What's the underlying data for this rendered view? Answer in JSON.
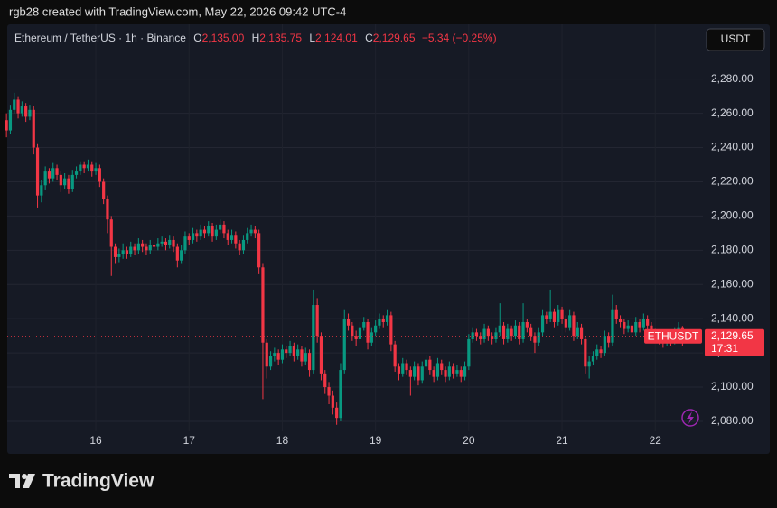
{
  "header": {
    "caption": "rgb28 created with TradingView.com, May 22, 2026 09:42 UTC-4",
    "currency_button": "USDT",
    "brand": "TradingView"
  },
  "chart_data": {
    "type": "candlestick",
    "legend": {
      "symbol": "Ethereum / TetherUS · 1h · Binance",
      "ohlc": [
        {
          "key": "O",
          "text": "2,135.00"
        },
        {
          "key": "H",
          "text": "2,135.75"
        },
        {
          "key": "L",
          "text": "2,124.01"
        },
        {
          "key": "C",
          "text": "2,129.65"
        }
      ],
      "change": "−5.34 (−0.25%)"
    },
    "up_color": "#089981",
    "down_color": "#f23645",
    "ylim": [
      2061,
      2312
    ],
    "yticks": [
      {
        "value": 2080,
        "label": "2,080.00"
      },
      {
        "value": 2100,
        "label": "2,100.00"
      },
      {
        "value": 2120,
        "label": "2,120.00"
      },
      {
        "value": 2140,
        "label": "2,140.00"
      },
      {
        "value": 2160,
        "label": "2,160.00"
      },
      {
        "value": 2180,
        "label": "2,180.00"
      },
      {
        "value": 2200,
        "label": "2,200.00"
      },
      {
        "value": 2220,
        "label": "2,220.00"
      },
      {
        "value": 2240,
        "label": "2,240.00"
      },
      {
        "value": 2260,
        "label": "2,260.00"
      },
      {
        "value": 2280,
        "label": "2,280.00"
      }
    ],
    "xticks": [
      {
        "value": 23,
        "label": "16"
      },
      {
        "value": 47,
        "label": "17"
      },
      {
        "value": 71,
        "label": "18"
      },
      {
        "value": 95,
        "label": "19"
      },
      {
        "value": 119,
        "label": "20"
      },
      {
        "value": 143,
        "label": "21"
      },
      {
        "value": 167,
        "label": "22"
      }
    ],
    "grid": true,
    "last_price": {
      "value": 2129.65,
      "label": "2,129.65",
      "countdown": "17:31",
      "symbol_label": "ETHUSDT"
    },
    "candles": [
      [
        2256,
        2260,
        2246,
        2250
      ],
      [
        2250,
        2265,
        2248,
        2262
      ],
      [
        2262,
        2272,
        2260,
        2268
      ],
      [
        2268,
        2270,
        2257,
        2260
      ],
      [
        2260,
        2267,
        2258,
        2264
      ],
      [
        2264,
        2266,
        2255,
        2258
      ],
      [
        2258,
        2265,
        2256,
        2262
      ],
      [
        2262,
        2264,
        2236,
        2240
      ],
      [
        2240,
        2242,
        2205,
        2212
      ],
      [
        2212,
        2221,
        2208,
        2218
      ],
      [
        2218,
        2229,
        2215,
        2226
      ],
      [
        2226,
        2228,
        2219,
        2222
      ],
      [
        2222,
        2231,
        2220,
        2228
      ],
      [
        2228,
        2230,
        2221,
        2224
      ],
      [
        2224,
        2226,
        2214,
        2218
      ],
      [
        2218,
        2225,
        2216,
        2222
      ],
      [
        2222,
        2224,
        2213,
        2216
      ],
      [
        2216,
        2227,
        2214,
        2224
      ],
      [
        2224,
        2229,
        2222,
        2226
      ],
      [
        2226,
        2232,
        2224,
        2230
      ],
      [
        2230,
        2232,
        2225,
        2228
      ],
      [
        2228,
        2233,
        2226,
        2230
      ],
      [
        2230,
        2232,
        2223,
        2226
      ],
      [
        2226,
        2231,
        2224,
        2228
      ],
      [
        2228,
        2230,
        2217,
        2220
      ],
      [
        2220,
        2222,
        2207,
        2210
      ],
      [
        2210,
        2212,
        2190,
        2198
      ],
      [
        2198,
        2200,
        2165,
        2182
      ],
      [
        2182,
        2184,
        2172,
        2176
      ],
      [
        2176,
        2181,
        2173,
        2178
      ],
      [
        2178,
        2184,
        2175,
        2180
      ],
      [
        2180,
        2182,
        2175,
        2178
      ],
      [
        2178,
        2185,
        2176,
        2182
      ],
      [
        2182,
        2184,
        2177,
        2180
      ],
      [
        2180,
        2187,
        2178,
        2184
      ],
      [
        2184,
        2186,
        2179,
        2182
      ],
      [
        2182,
        2184,
        2177,
        2180
      ],
      [
        2180,
        2186,
        2178,
        2183
      ],
      [
        2183,
        2185,
        2180,
        2182
      ],
      [
        2182,
        2187,
        2180,
        2184
      ],
      [
        2184,
        2188,
        2182,
        2185
      ],
      [
        2185,
        2187,
        2180,
        2183
      ],
      [
        2183,
        2189,
        2181,
        2186
      ],
      [
        2186,
        2188,
        2179,
        2182
      ],
      [
        2182,
        2184,
        2170,
        2174
      ],
      [
        2174,
        2183,
        2172,
        2180
      ],
      [
        2180,
        2191,
        2178,
        2188
      ],
      [
        2188,
        2190,
        2183,
        2186
      ],
      [
        2186,
        2193,
        2184,
        2190
      ],
      [
        2190,
        2192,
        2185,
        2188
      ],
      [
        2188,
        2195,
        2186,
        2192
      ],
      [
        2192,
        2194,
        2187,
        2190
      ],
      [
        2190,
        2197,
        2188,
        2194
      ],
      [
        2194,
        2196,
        2185,
        2188
      ],
      [
        2188,
        2195,
        2186,
        2192
      ],
      [
        2192,
        2198,
        2190,
        2195
      ],
      [
        2195,
        2197,
        2187,
        2190
      ],
      [
        2190,
        2192,
        2183,
        2186
      ],
      [
        2186,
        2192,
        2184,
        2189
      ],
      [
        2189,
        2191,
        2181,
        2184
      ],
      [
        2184,
        2186,
        2177,
        2180
      ],
      [
        2180,
        2189,
        2178,
        2186
      ],
      [
        2186,
        2193,
        2184,
        2190
      ],
      [
        2190,
        2195,
        2188,
        2192
      ],
      [
        2192,
        2194,
        2187,
        2190
      ],
      [
        2190,
        2192,
        2166,
        2170
      ],
      [
        2170,
        2172,
        2093,
        2126
      ],
      [
        2126,
        2128,
        2105,
        2112
      ],
      [
        2112,
        2121,
        2110,
        2118
      ],
      [
        2118,
        2123,
        2115,
        2120
      ],
      [
        2120,
        2122,
        2113,
        2116
      ],
      [
        2116,
        2125,
        2114,
        2122
      ],
      [
        2122,
        2124,
        2117,
        2120
      ],
      [
        2120,
        2127,
        2118,
        2124
      ],
      [
        2124,
        2126,
        2115,
        2118
      ],
      [
        2118,
        2125,
        2116,
        2122
      ],
      [
        2122,
        2124,
        2112,
        2115
      ],
      [
        2115,
        2123,
        2113,
        2120
      ],
      [
        2120,
        2122,
        2106,
        2110
      ],
      [
        2110,
        2157,
        2108,
        2148
      ],
      [
        2148,
        2152,
        2126,
        2130
      ],
      [
        2130,
        2132,
        2104,
        2108
      ],
      [
        2108,
        2110,
        2096,
        2100
      ],
      [
        2100,
        2103,
        2090,
        2095
      ],
      [
        2095,
        2098,
        2084,
        2088
      ],
      [
        2088,
        2091,
        2078,
        2082
      ],
      [
        2082,
        2114,
        2080,
        2110
      ],
      [
        2110,
        2145,
        2108,
        2140
      ],
      [
        2140,
        2143,
        2133,
        2136
      ],
      [
        2136,
        2138,
        2127,
        2130
      ],
      [
        2130,
        2133,
        2124,
        2128
      ],
      [
        2128,
        2138,
        2126,
        2135
      ],
      [
        2135,
        2141,
        2133,
        2138
      ],
      [
        2138,
        2140,
        2122,
        2126
      ],
      [
        2126,
        2135,
        2124,
        2132
      ],
      [
        2132,
        2139,
        2130,
        2136
      ],
      [
        2136,
        2143,
        2134,
        2140
      ],
      [
        2140,
        2142,
        2135,
        2138
      ],
      [
        2138,
        2145,
        2136,
        2142
      ],
      [
        2142,
        2144,
        2121,
        2125
      ],
      [
        2125,
        2127,
        2109,
        2112
      ],
      [
        2112,
        2114,
        2104,
        2108
      ],
      [
        2108,
        2117,
        2106,
        2114
      ],
      [
        2114,
        2116,
        2107,
        2110
      ],
      [
        2110,
        2112,
        2095,
        2106
      ],
      [
        2106,
        2115,
        2104,
        2112
      ],
      [
        2112,
        2114,
        2101,
        2104
      ],
      [
        2104,
        2115,
        2102,
        2112
      ],
      [
        2112,
        2119,
        2110,
        2116
      ],
      [
        2116,
        2118,
        2107,
        2110
      ],
      [
        2110,
        2112,
        2103,
        2106
      ],
      [
        2106,
        2117,
        2104,
        2114
      ],
      [
        2114,
        2116,
        2107,
        2110
      ],
      [
        2110,
        2112,
        2103,
        2106
      ],
      [
        2106,
        2115,
        2104,
        2112
      ],
      [
        2112,
        2114,
        2105,
        2108
      ],
      [
        2108,
        2113,
        2106,
        2110
      ],
      [
        2110,
        2112,
        2103,
        2106
      ],
      [
        2106,
        2115,
        2104,
        2112
      ],
      [
        2112,
        2131,
        2110,
        2128
      ],
      [
        2128,
        2135,
        2126,
        2132
      ],
      [
        2132,
        2134,
        2127,
        2130
      ],
      [
        2130,
        2132,
        2125,
        2128
      ],
      [
        2128,
        2137,
        2126,
        2134
      ],
      [
        2134,
        2136,
        2127,
        2130
      ],
      [
        2130,
        2132,
        2125,
        2128
      ],
      [
        2128,
        2135,
        2126,
        2132
      ],
      [
        2132,
        2149,
        2130,
        2136
      ],
      [
        2136,
        2138,
        2125,
        2128
      ],
      [
        2128,
        2137,
        2126,
        2134
      ],
      [
        2134,
        2136,
        2127,
        2130
      ],
      [
        2130,
        2139,
        2128,
        2136
      ],
      [
        2136,
        2138,
        2125,
        2128
      ],
      [
        2128,
        2149,
        2126,
        2138
      ],
      [
        2138,
        2140,
        2132,
        2135
      ],
      [
        2135,
        2137,
        2127,
        2130
      ],
      [
        2130,
        2132,
        2120,
        2126
      ],
      [
        2126,
        2135,
        2124,
        2132
      ],
      [
        2132,
        2145,
        2130,
        2142
      ],
      [
        2142,
        2144,
        2137,
        2140
      ],
      [
        2140,
        2157,
        2138,
        2144
      ],
      [
        2144,
        2146,
        2135,
        2138
      ],
      [
        2138,
        2148,
        2136,
        2145
      ],
      [
        2145,
        2147,
        2137,
        2140
      ],
      [
        2140,
        2142,
        2132,
        2135
      ],
      [
        2135,
        2145,
        2133,
        2142
      ],
      [
        2142,
        2144,
        2127,
        2130
      ],
      [
        2130,
        2138,
        2128,
        2135
      ],
      [
        2135,
        2137,
        2125,
        2128
      ],
      [
        2128,
        2130,
        2108,
        2112
      ],
      [
        2112,
        2118,
        2105,
        2115
      ],
      [
        2115,
        2121,
        2113,
        2118
      ],
      [
        2118,
        2125,
        2116,
        2122
      ],
      [
        2122,
        2124,
        2117,
        2120
      ],
      [
        2120,
        2133,
        2118,
        2130
      ],
      [
        2130,
        2132,
        2123,
        2126
      ],
      [
        2126,
        2154,
        2124,
        2145
      ],
      [
        2145,
        2148,
        2137,
        2140
      ],
      [
        2140,
        2142,
        2135,
        2138
      ],
      [
        2138,
        2140,
        2131,
        2134
      ],
      [
        2134,
        2139,
        2132,
        2136
      ],
      [
        2136,
        2138,
        2129,
        2132
      ],
      [
        2132,
        2141,
        2130,
        2138
      ],
      [
        2138,
        2140,
        2132,
        2135
      ],
      [
        2135,
        2143,
        2133,
        2140
      ],
      [
        2140,
        2142,
        2133,
        2136
      ],
      [
        2136,
        2138,
        2129,
        2132
      ],
      [
        2132,
        2134,
        2127,
        2130
      ],
      [
        2130,
        2132,
        2125,
        2128
      ],
      [
        2128,
        2130,
        2123,
        2126
      ],
      [
        2126,
        2131,
        2124,
        2128
      ],
      [
        2128,
        2130,
        2124,
        2127
      ],
      [
        2127,
        2135,
        2125,
        2132
      ],
      [
        2132,
        2138,
        2130,
        2135
      ],
      [
        2135,
        2135.75,
        2124.01,
        2129.65
      ]
    ]
  }
}
